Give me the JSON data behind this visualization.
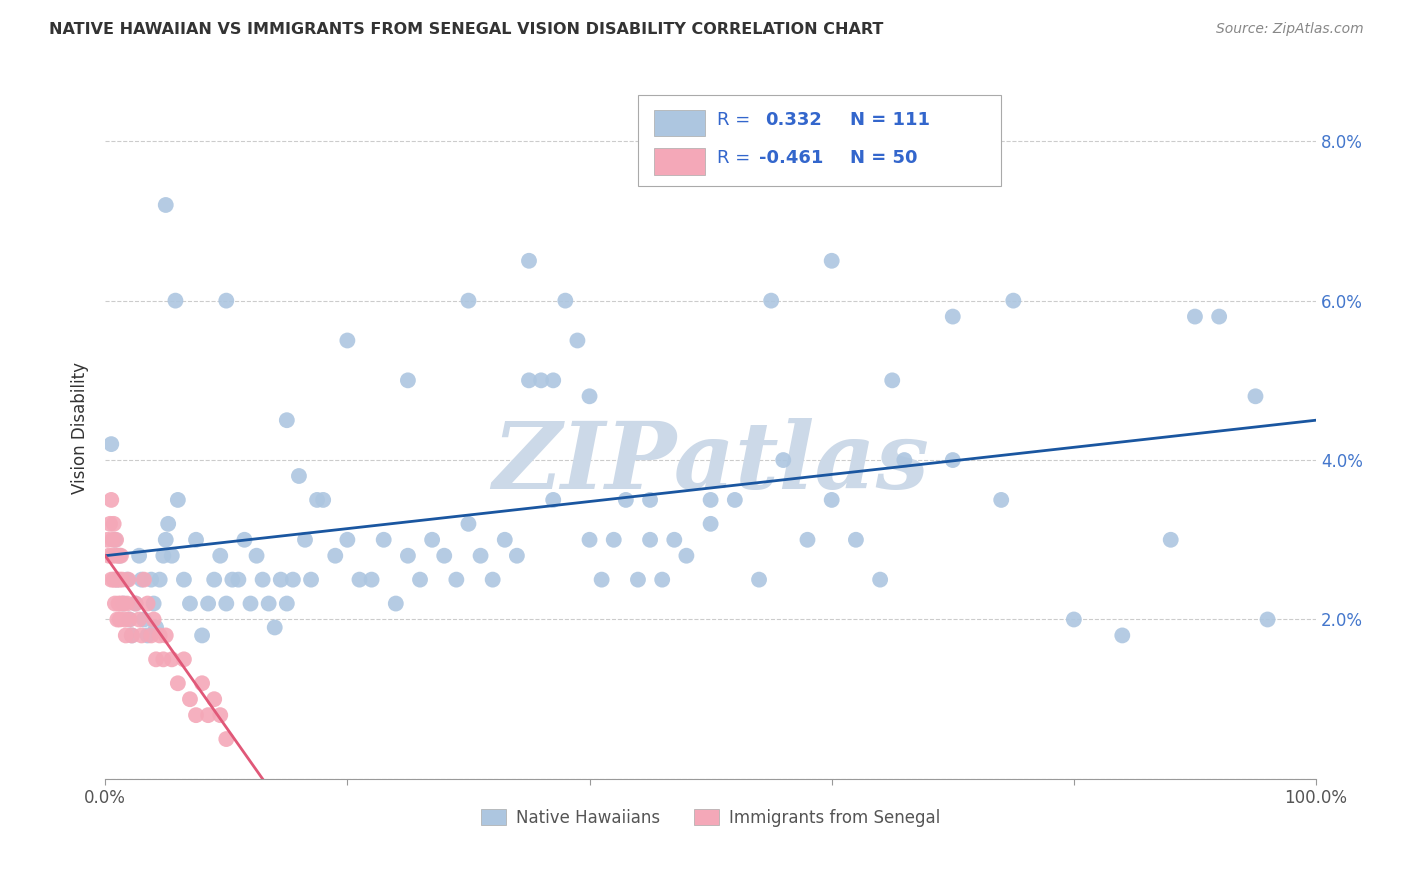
{
  "title": "NATIVE HAWAIIAN VS IMMIGRANTS FROM SENEGAL VISION DISABILITY CORRELATION CHART",
  "source": "Source: ZipAtlas.com",
  "ylabel": "Vision Disability",
  "xlim": [
    0.0,
    1.0
  ],
  "ylim": [
    0.0,
    0.088
  ],
  "xticks": [
    0.0,
    0.2,
    0.4,
    0.6,
    0.8,
    1.0
  ],
  "xticklabels": [
    "0.0%",
    "",
    "",
    "",
    "",
    "100.0%"
  ],
  "yticks": [
    0.0,
    0.02,
    0.04,
    0.06,
    0.08
  ],
  "right_yticklabels": [
    "",
    "2.0%",
    "4.0%",
    "6.0%",
    "8.0%"
  ],
  "blue_color": "#adc6e0",
  "pink_color": "#f4a8b8",
  "blue_line_color": "#1a56a0",
  "pink_line_color": "#e05878",
  "watermark_color": "#ccd9e8",
  "background_color": "#ffffff",
  "blue_x": [
    0.005,
    0.008,
    0.01,
    0.012,
    0.015,
    0.018,
    0.02,
    0.022,
    0.025,
    0.028,
    0.03,
    0.032,
    0.035,
    0.038,
    0.04,
    0.042,
    0.045,
    0.048,
    0.05,
    0.052,
    0.055,
    0.058,
    0.06,
    0.065,
    0.07,
    0.075,
    0.08,
    0.085,
    0.09,
    0.095,
    0.1,
    0.105,
    0.11,
    0.115,
    0.12,
    0.125,
    0.13,
    0.135,
    0.14,
    0.145,
    0.15,
    0.155,
    0.16,
    0.165,
    0.17,
    0.175,
    0.18,
    0.19,
    0.2,
    0.21,
    0.22,
    0.23,
    0.24,
    0.25,
    0.26,
    0.27,
    0.28,
    0.29,
    0.3,
    0.31,
    0.32,
    0.33,
    0.34,
    0.35,
    0.36,
    0.37,
    0.38,
    0.39,
    0.4,
    0.41,
    0.42,
    0.43,
    0.44,
    0.45,
    0.46,
    0.47,
    0.48,
    0.5,
    0.52,
    0.54,
    0.56,
    0.58,
    0.6,
    0.62,
    0.64,
    0.66,
    0.7,
    0.74,
    0.8,
    0.84,
    0.88,
    0.92,
    0.96,
    0.05,
    0.1,
    0.15,
    0.2,
    0.25,
    0.3,
    0.35,
    0.4,
    0.45,
    0.5,
    0.55,
    0.6,
    0.65,
    0.7,
    0.75,
    0.9,
    0.95,
    0.37
  ],
  "blue_y": [
    0.042,
    0.03,
    0.025,
    0.028,
    0.022,
    0.025,
    0.02,
    0.018,
    0.022,
    0.028,
    0.025,
    0.02,
    0.018,
    0.025,
    0.022,
    0.019,
    0.025,
    0.028,
    0.03,
    0.032,
    0.028,
    0.06,
    0.035,
    0.025,
    0.022,
    0.03,
    0.018,
    0.022,
    0.025,
    0.028,
    0.022,
    0.025,
    0.025,
    0.03,
    0.022,
    0.028,
    0.025,
    0.022,
    0.019,
    0.025,
    0.022,
    0.025,
    0.038,
    0.03,
    0.025,
    0.035,
    0.035,
    0.028,
    0.03,
    0.025,
    0.025,
    0.03,
    0.022,
    0.028,
    0.025,
    0.03,
    0.028,
    0.025,
    0.032,
    0.028,
    0.025,
    0.03,
    0.028,
    0.065,
    0.05,
    0.035,
    0.06,
    0.055,
    0.03,
    0.025,
    0.03,
    0.035,
    0.025,
    0.03,
    0.025,
    0.03,
    0.028,
    0.032,
    0.035,
    0.025,
    0.04,
    0.03,
    0.035,
    0.03,
    0.025,
    0.04,
    0.04,
    0.035,
    0.02,
    0.018,
    0.03,
    0.058,
    0.02,
    0.072,
    0.06,
    0.045,
    0.055,
    0.05,
    0.06,
    0.05,
    0.048,
    0.035,
    0.035,
    0.06,
    0.065,
    0.05,
    0.058,
    0.06,
    0.058,
    0.048,
    0.05
  ],
  "pink_x": [
    0.002,
    0.003,
    0.004,
    0.005,
    0.005,
    0.006,
    0.006,
    0.007,
    0.007,
    0.008,
    0.008,
    0.009,
    0.009,
    0.01,
    0.01,
    0.011,
    0.011,
    0.012,
    0.012,
    0.013,
    0.013,
    0.014,
    0.015,
    0.016,
    0.017,
    0.018,
    0.019,
    0.02,
    0.022,
    0.025,
    0.028,
    0.03,
    0.032,
    0.035,
    0.038,
    0.04,
    0.042,
    0.045,
    0.048,
    0.05,
    0.055,
    0.06,
    0.065,
    0.07,
    0.075,
    0.08,
    0.085,
    0.09,
    0.095,
    0.1
  ],
  "pink_y": [
    0.03,
    0.028,
    0.032,
    0.025,
    0.035,
    0.028,
    0.03,
    0.025,
    0.032,
    0.022,
    0.025,
    0.028,
    0.03,
    0.025,
    0.02,
    0.022,
    0.028,
    0.02,
    0.025,
    0.022,
    0.028,
    0.025,
    0.022,
    0.02,
    0.018,
    0.022,
    0.025,
    0.02,
    0.018,
    0.022,
    0.02,
    0.018,
    0.025,
    0.022,
    0.018,
    0.02,
    0.015,
    0.018,
    0.015,
    0.018,
    0.015,
    0.012,
    0.015,
    0.01,
    0.008,
    0.012,
    0.008,
    0.01,
    0.008,
    0.005
  ]
}
